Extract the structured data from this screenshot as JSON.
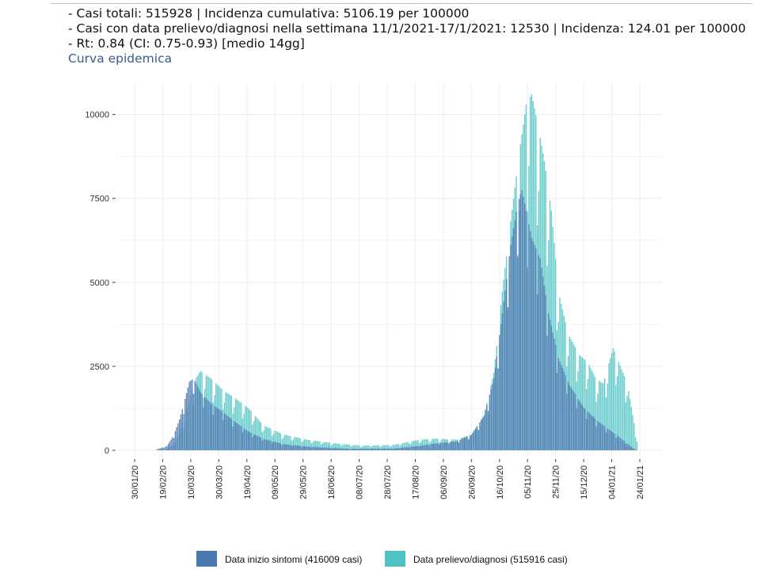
{
  "header": {
    "line1": "- Casi totali: 515928 | Incidenza cumulativa: 5106.19 per 100000",
    "line2": "- Casi con data prelievo/diagnosi nella settimana 11/1/2021-17/1/2021: 12530 | Incidenza: 124.01 per 100000",
    "line3": "- Rt: 0.84 (CI: 0.75-0.93) [medio 14gg]",
    "subtitle": "Curva epidemica"
  },
  "colors": {
    "series1": "#4a78b0",
    "series2": "#4fc3c3",
    "grid": "#ececec"
  },
  "chart_data": {
    "type": "bar",
    "title": "Curva epidemica",
    "xlabel": "",
    "ylabel": "",
    "ylim": [
      0,
      10500
    ],
    "yticks": [
      0,
      2500,
      5000,
      7500,
      10000
    ],
    "ytick_labels": [
      "0",
      "2500",
      "5000",
      "7500",
      "10000"
    ],
    "x_start": "2020-01-30",
    "x_end": "2021-01-24",
    "xticks": [
      "30/01/20",
      "19/02/20",
      "10/03/20",
      "30/03/20",
      "19/04/20",
      "09/05/20",
      "29/05/20",
      "18/06/20",
      "08/07/20",
      "28/07/20",
      "17/08/20",
      "06/09/20",
      "26/09/20",
      "16/10/20",
      "05/11/20",
      "25/11/20",
      "15/12/20",
      "04/01/21",
      "24/01/21"
    ],
    "grid": true,
    "legend_position": "bottom",
    "series": [
      {
        "name": "Data inizio sintomi (416009 casi)",
        "points": [
          [
            "2020-02-15",
            30
          ],
          [
            "2020-02-22",
            120
          ],
          [
            "2020-02-27",
            450
          ],
          [
            "2020-03-02",
            900
          ],
          [
            "2020-03-06",
            1500
          ],
          [
            "2020-03-09",
            2000
          ],
          [
            "2020-03-12",
            2100
          ],
          [
            "2020-03-14",
            1950
          ],
          [
            "2020-03-17",
            1700
          ],
          [
            "2020-03-20",
            1550
          ],
          [
            "2020-03-25",
            1350
          ],
          [
            "2020-04-01",
            1150
          ],
          [
            "2020-04-10",
            850
          ],
          [
            "2020-04-20",
            550
          ],
          [
            "2020-05-01",
            330
          ],
          [
            "2020-05-15",
            180
          ],
          [
            "2020-06-01",
            110
          ],
          [
            "2020-07-01",
            45
          ],
          [
            "2020-08-01",
            50
          ],
          [
            "2020-08-20",
            130
          ],
          [
            "2020-09-01",
            200
          ],
          [
            "2020-09-15",
            260
          ],
          [
            "2020-09-26",
            450
          ],
          [
            "2020-10-05",
            1000
          ],
          [
            "2020-10-12",
            2100
          ],
          [
            "2020-10-18",
            4000
          ],
          [
            "2020-10-24",
            6000
          ],
          [
            "2020-10-29",
            7200
          ],
          [
            "2020-11-01",
            7600
          ],
          [
            "2020-11-03",
            7200
          ],
          [
            "2020-11-08",
            6200
          ],
          [
            "2020-11-14",
            5600
          ],
          [
            "2020-11-20",
            4000
          ],
          [
            "2020-11-27",
            2700
          ],
          [
            "2020-12-05",
            1900
          ],
          [
            "2020-12-15",
            1250
          ],
          [
            "2020-12-25",
            850
          ],
          [
            "2021-01-04",
            550
          ],
          [
            "2021-01-12",
            300
          ],
          [
            "2021-01-18",
            100
          ],
          [
            "2021-01-21",
            15
          ]
        ]
      },
      {
        "name": "Data prelievo/diagnosi (515916 casi)",
        "points": [
          [
            "2020-02-21",
            20
          ],
          [
            "2020-02-26",
            150
          ],
          [
            "2020-03-01",
            400
          ],
          [
            "2020-03-05",
            900
          ],
          [
            "2020-03-09",
            1400
          ],
          [
            "2020-03-13",
            2000
          ],
          [
            "2020-03-17",
            2250
          ],
          [
            "2020-03-20",
            2150
          ],
          [
            "2020-03-24",
            2050
          ],
          [
            "2020-03-28",
            1900
          ],
          [
            "2020-04-02",
            1700
          ],
          [
            "2020-04-10",
            1500
          ],
          [
            "2020-04-20",
            1200
          ],
          [
            "2020-05-01",
            700
          ],
          [
            "2020-05-15",
            450
          ],
          [
            "2020-06-01",
            300
          ],
          [
            "2020-06-20",
            200
          ],
          [
            "2020-07-10",
            130
          ],
          [
            "2020-08-01",
            150
          ],
          [
            "2020-08-20",
            300
          ],
          [
            "2020-09-01",
            330
          ],
          [
            "2020-09-15",
            300
          ],
          [
            "2020-09-26",
            450
          ],
          [
            "2020-10-05",
            1000
          ],
          [
            "2020-10-12",
            2200
          ],
          [
            "2020-10-18",
            4500
          ],
          [
            "2020-10-24",
            6500
          ],
          [
            "2020-10-30",
            8400
          ],
          [
            "2020-11-04",
            9800
          ],
          [
            "2020-11-08",
            10100
          ],
          [
            "2020-11-12",
            9300
          ],
          [
            "2020-11-17",
            8200
          ],
          [
            "2020-11-22",
            6800
          ],
          [
            "2020-11-27",
            4500
          ],
          [
            "2020-12-04",
            3300
          ],
          [
            "2020-12-12",
            2700
          ],
          [
            "2020-12-18",
            2500
          ],
          [
            "2020-12-24",
            2000
          ],
          [
            "2020-12-29",
            1900
          ],
          [
            "2021-01-05",
            2900
          ],
          [
            "2021-01-10",
            2400
          ],
          [
            "2021-01-15",
            1900
          ],
          [
            "2021-01-19",
            1000
          ],
          [
            "2021-01-22",
            300
          ]
        ]
      }
    ]
  }
}
